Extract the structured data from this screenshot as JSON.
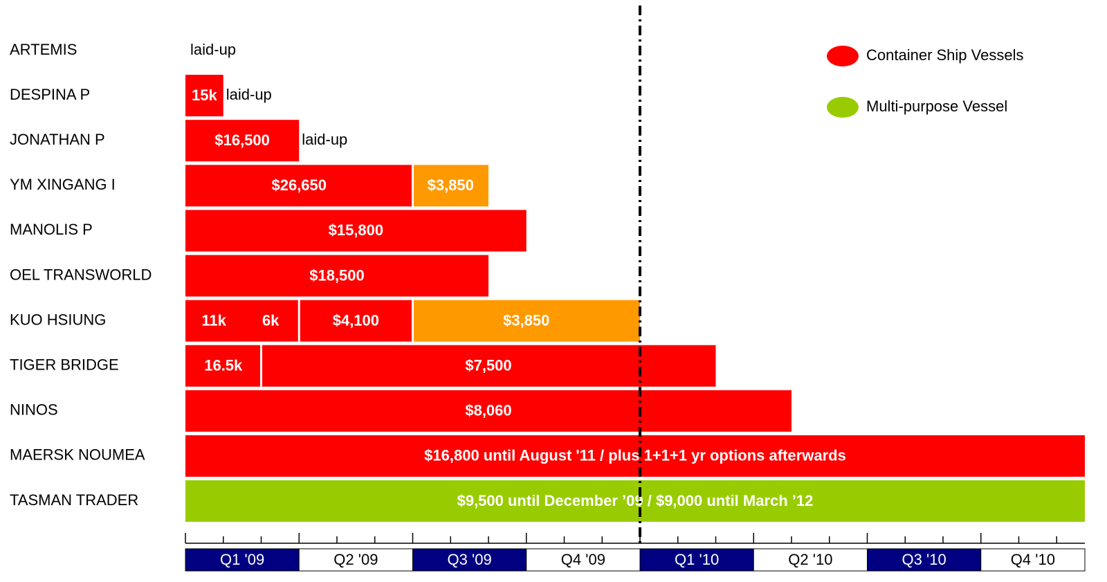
{
  "chart_data": {
    "type": "gantt",
    "categories": [
      "Q1 '09",
      "Q2 '09",
      "Q3 '09",
      "Q4 '09",
      "Q1 '10",
      "Q2 '10",
      "Q3 '10",
      "Q4 '10"
    ],
    "xlim": [
      0,
      24
    ],
    "xticks": [
      0,
      1,
      2,
      3,
      4,
      5,
      6,
      7,
      8,
      9,
      10,
      11,
      12,
      13,
      14,
      15,
      16,
      17,
      18,
      19,
      20,
      21,
      22,
      23,
      24
    ],
    "divider": 12,
    "legend": [
      {
        "name": "Container Ship Vessels",
        "color": "#ff0000"
      },
      {
        "name": "Multi-purpose Vessel",
        "color": "#99cc00"
      }
    ],
    "rows": [
      {
        "name": "ARTEMIS",
        "segments": [],
        "note": "laid-up"
      },
      {
        "name": "DESPINA P",
        "segments": [
          {
            "start": 0,
            "end": 1,
            "color": "#ff0000",
            "labels": [
              "15k"
            ]
          }
        ],
        "note": "laid-up"
      },
      {
        "name": "JONATHAN P",
        "segments": [
          {
            "start": 0,
            "end": 3,
            "color": "#ff0000",
            "labels": [
              "$16,500"
            ]
          }
        ],
        "note": "laid-up"
      },
      {
        "name": "YM XINGANG I",
        "segments": [
          {
            "start": 0,
            "end": 6,
            "color": "#ff0000",
            "labels": [
              "$26,650"
            ]
          },
          {
            "start": 6,
            "end": 8,
            "color": "#ff9900",
            "labels": [
              "$3,850"
            ]
          }
        ]
      },
      {
        "name": "MANOLIS P",
        "segments": [
          {
            "start": 0,
            "end": 9,
            "color": "#ff0000",
            "labels": [
              "$15,800"
            ]
          }
        ]
      },
      {
        "name": "OEL TRANSWORLD",
        "segments": [
          {
            "start": 0,
            "end": 8,
            "color": "#ff0000",
            "labels": [
              "$18,500"
            ]
          }
        ]
      },
      {
        "name": "KUO HSIUNG",
        "segments": [
          {
            "start": 0,
            "end": 3,
            "color": "#ff0000",
            "labels": [
              "11k",
              "6k"
            ]
          },
          {
            "start": 3,
            "end": 6,
            "color": "#ff0000",
            "labels": [
              "$4,100"
            ]
          },
          {
            "start": 6,
            "end": 12,
            "color": "#ff9900",
            "labels": [
              "$3,850"
            ]
          }
        ]
      },
      {
        "name": "TIGER BRIDGE",
        "segments": [
          {
            "start": 0,
            "end": 2,
            "color": "#ff0000",
            "labels": [
              "16.5k"
            ]
          },
          {
            "start": 2,
            "end": 14,
            "color": "#ff0000",
            "labels": [
              "$7,500"
            ]
          }
        ]
      },
      {
        "name": "NINOS",
        "segments": [
          {
            "start": 0,
            "end": 16,
            "color": "#ff0000",
            "labels": [
              "$8,060"
            ]
          }
        ]
      },
      {
        "name": "MAERSK NOUMEA",
        "segments": [
          {
            "start": 0,
            "end": 31,
            "color": "#ff0000",
            "labels": [
              "$16,800 until August '11 / plus 1+1+1 yr options afterwards"
            ]
          }
        ]
      },
      {
        "name": "TASMAN TRADER",
        "segments": [
          {
            "start": 0,
            "end": 39,
            "color": "#99cc00",
            "labels": [
              "$9,500 until December ’09 / $9,000 until March ’12"
            ]
          }
        ]
      }
    ]
  }
}
